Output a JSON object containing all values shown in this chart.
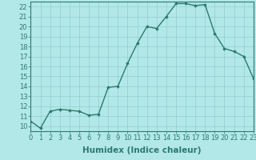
{
  "x": [
    0,
    1,
    2,
    3,
    4,
    5,
    6,
    7,
    8,
    9,
    10,
    11,
    12,
    13,
    14,
    15,
    16,
    17,
    18,
    19,
    20,
    21,
    22,
    23
  ],
  "y": [
    10.5,
    9.8,
    11.5,
    11.7,
    11.6,
    11.5,
    11.1,
    11.2,
    13.9,
    14.0,
    16.3,
    18.3,
    20.0,
    19.8,
    21.0,
    22.3,
    22.3,
    22.1,
    22.2,
    19.3,
    17.8,
    17.5,
    17.0,
    14.8
  ],
  "xlabel": "Humidex (Indice chaleur)",
  "xlim": [
    0,
    23
  ],
  "ylim": [
    9.5,
    22.5
  ],
  "yticks": [
    10,
    11,
    12,
    13,
    14,
    15,
    16,
    17,
    18,
    19,
    20,
    21,
    22
  ],
  "xticks": [
    0,
    1,
    2,
    3,
    4,
    5,
    6,
    7,
    8,
    9,
    10,
    11,
    12,
    13,
    14,
    15,
    16,
    17,
    18,
    19,
    20,
    21,
    22,
    23
  ],
  "xtick_labels": [
    "0",
    "1",
    "2",
    "3",
    "4",
    "5",
    "6",
    "7",
    "8",
    "9",
    "10",
    "11",
    "12",
    "13",
    "14",
    "15",
    "16",
    "17",
    "18",
    "19",
    "20",
    "21",
    "22",
    "23"
  ],
  "line_color": "#2d7a6e",
  "marker": "D",
  "marker_size": 1.8,
  "line_width": 1.0,
  "bg_color": "#b3e8e8",
  "grid_color": "#8ecece",
  "xlabel_fontsize": 7.5,
  "tick_fontsize": 6.0
}
